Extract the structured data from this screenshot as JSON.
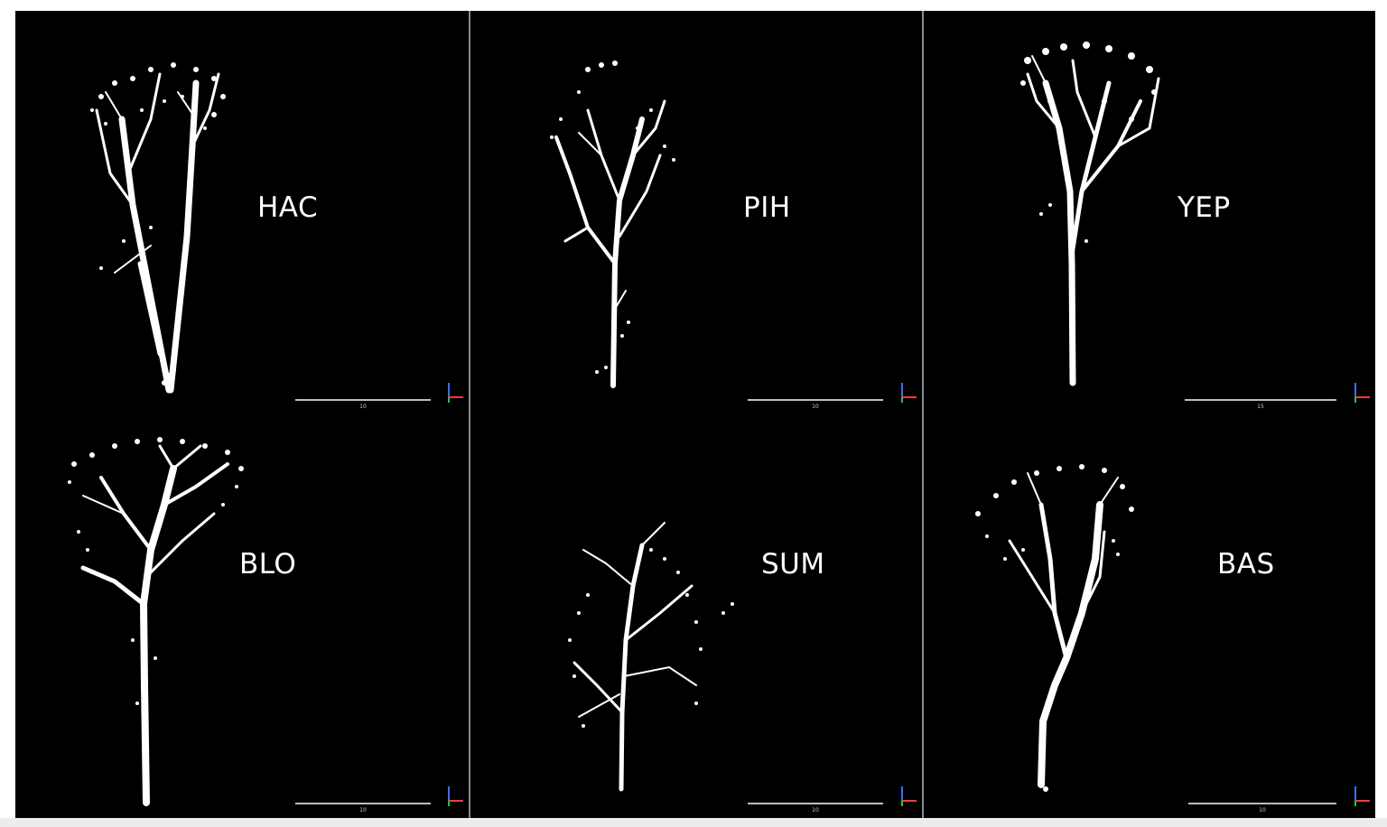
{
  "colors": {
    "background": "#000000",
    "tree": "#ffffff",
    "separator": "#8a8a8a"
  },
  "panels": [
    {
      "id": "HAC",
      "label": "HAC",
      "scale": "10"
    },
    {
      "id": "PIH",
      "label": "PIH",
      "scale": "10"
    },
    {
      "id": "YEP",
      "label": "YEP",
      "scale": "15"
    },
    {
      "id": "BLO",
      "label": "BLO",
      "scale": "10"
    },
    {
      "id": "SUM",
      "label": "SUM",
      "scale": "10"
    },
    {
      "id": "BAS",
      "label": "BAS",
      "scale": "10"
    }
  ],
  "icons": {
    "axis_gizmo": "axis-gizmo-icon"
  }
}
